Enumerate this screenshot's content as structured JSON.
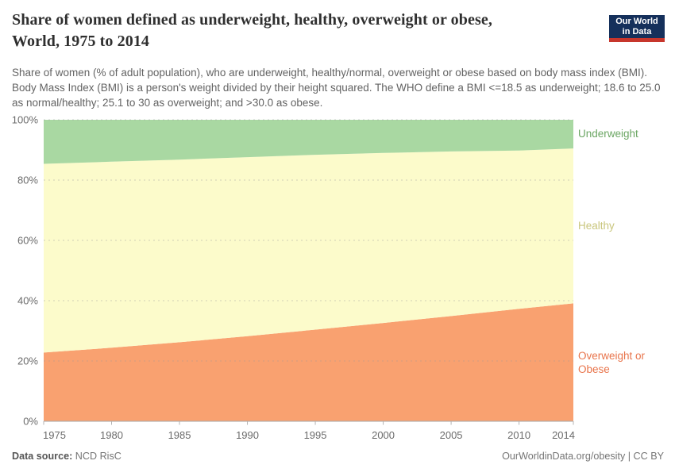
{
  "header": {
    "title_line1": "Share of women defined as underweight, healthy, overweight or obese,",
    "title_line2": "World, 1975 to 2014",
    "subtitle": "Share of women (% of adult population), who are underweight, healthy/normal, overweight or obese based on body mass index (BMI). Body Mass Index (BMI) is a person's weight divided by their height squared. The WHO define a BMI <=18.5 as underweight; 18.6 to 25.0 as normal/healthy; 25.1 to 30 as overweight; and >30.0 as obese.",
    "logo": {
      "line1": "Our World",
      "line2": "in Data",
      "navy": "#15305b",
      "red": "#c7362c"
    }
  },
  "chart_data": {
    "type": "area",
    "stacked": true,
    "title": "Share of women defined as underweight, healthy, overweight or obese, World, 1975 to 2014",
    "x": [
      1975,
      1980,
      1985,
      1990,
      1995,
      2000,
      2005,
      2010,
      2014
    ],
    "xticks": [
      1975,
      1980,
      1985,
      1990,
      1995,
      2000,
      2005,
      2010,
      2014
    ],
    "yticks": [
      0,
      20,
      40,
      60,
      80,
      100
    ],
    "ytick_suffix": "%",
    "ylim": [
      0,
      100
    ],
    "grid": true,
    "legend_position": "right-edge-labels",
    "series": [
      {
        "name": "Overweight or Obese",
        "values": [
          22.8,
          24.4,
          26.2,
          28.2,
          30.4,
          32.6,
          34.9,
          37.3,
          39.1
        ],
        "area_color": "#F9A170",
        "label_color": "#E8744B"
      },
      {
        "name": "Healthy",
        "values": [
          62.6,
          61.7,
          60.6,
          59.4,
          58.0,
          56.4,
          54.6,
          52.5,
          51.4
        ],
        "area_color": "#FCFBCB",
        "label_color": "#C9C67D"
      },
      {
        "name": "Underweight",
        "values": [
          14.6,
          13.9,
          13.2,
          12.4,
          11.6,
          11.0,
          10.5,
          10.2,
          9.5
        ],
        "area_color": "#A9D8A2",
        "label_color": "#6BA663"
      }
    ],
    "axis_text_color": "#6b6b6b",
    "axis_line_color": "#a6a6a6",
    "gridline_color": "#999999"
  },
  "footer": {
    "source_label": "Data source:",
    "source_name": "NCD RisC",
    "right": "OurWorldinData.org/obesity | CC BY"
  }
}
